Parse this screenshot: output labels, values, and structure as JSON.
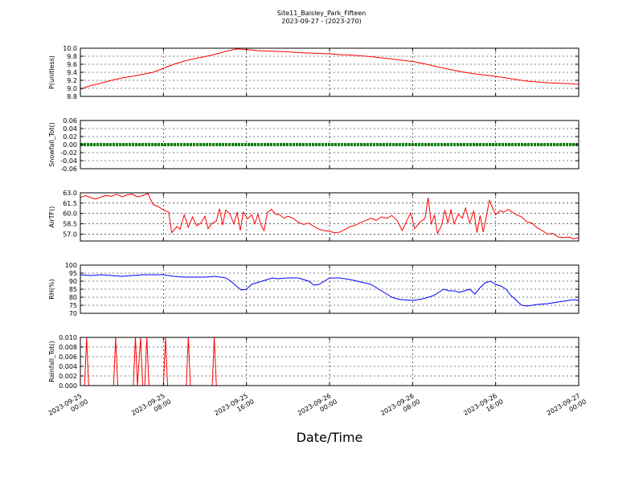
{
  "chart_data": {
    "type": "line",
    "title": "Site11_Baisley_Park_Fifteen",
    "subtitle": "2023-09-27 - (2023-270)",
    "xlabel": "Date/Time",
    "x_ticks": [
      {
        "line1": "2023-09-25",
        "line2": "00:00"
      },
      {
        "line1": "2023-09-25",
        "line2": "08:00"
      },
      {
        "line1": "2023-09-25",
        "line2": "16:00"
      },
      {
        "line1": "2023-09-26",
        "line2": "00:00"
      },
      {
        "line1": "2023-09-26",
        "line2": "08:00"
      },
      {
        "line1": "2023-09-26",
        "line2": "16:00"
      },
      {
        "line1": "2023-09-27",
        "line2": "00:00"
      }
    ],
    "x_range_hours": [
      0,
      48
    ],
    "grid": true,
    "panels": [
      {
        "ylabel": "P(unitless)",
        "ylim": [
          8.8,
          10.0
        ],
        "yticks": [
          "10.0",
          "9.8",
          "9.6",
          "9.4",
          "9.2",
          "9.0",
          "8.8"
        ],
        "ytick_values": [
          10.0,
          9.8,
          9.6,
          9.4,
          9.2,
          9.0,
          8.8
        ],
        "color": "#ff0000",
        "style": "line",
        "points": [
          [
            0,
            8.98
          ],
          [
            1,
            9.07
          ],
          [
            2,
            9.13
          ],
          [
            3,
            9.2
          ],
          [
            4,
            9.26
          ],
          [
            5,
            9.3
          ],
          [
            6,
            9.35
          ],
          [
            7,
            9.4
          ],
          [
            8,
            9.5
          ],
          [
            9,
            9.6
          ],
          [
            10,
            9.68
          ],
          [
            11,
            9.74
          ],
          [
            12,
            9.79
          ],
          [
            13,
            9.85
          ],
          [
            14,
            9.92
          ],
          [
            15,
            9.98
          ],
          [
            16,
            9.97
          ],
          [
            17,
            9.94
          ],
          [
            18,
            9.93
          ],
          [
            19,
            9.92
          ],
          [
            20,
            9.91
          ],
          [
            21,
            9.89
          ],
          [
            22,
            9.88
          ],
          [
            23,
            9.87
          ],
          [
            24,
            9.86
          ],
          [
            25,
            9.84
          ],
          [
            26,
            9.83
          ],
          [
            27,
            9.81
          ],
          [
            28,
            9.79
          ],
          [
            29,
            9.76
          ],
          [
            30,
            9.73
          ],
          [
            31,
            9.7
          ],
          [
            32,
            9.67
          ],
          [
            33,
            9.62
          ],
          [
            34,
            9.56
          ],
          [
            35,
            9.5
          ],
          [
            36,
            9.45
          ],
          [
            37,
            9.4
          ],
          [
            38,
            9.36
          ],
          [
            39,
            9.33
          ],
          [
            40,
            9.3
          ],
          [
            41,
            9.26
          ],
          [
            42,
            9.22
          ],
          [
            43,
            9.18
          ],
          [
            44,
            9.16
          ],
          [
            45,
            9.14
          ],
          [
            46,
            9.13
          ],
          [
            47,
            9.12
          ],
          [
            48,
            9.1
          ]
        ]
      },
      {
        "ylabel": "Snowfall_Tot()",
        "ylim": [
          -0.06,
          0.06
        ],
        "yticks": [
          "0.06",
          "0.04",
          "0.02",
          "0.00",
          "-0.02",
          "-0.04",
          "-0.06"
        ],
        "ytick_values": [
          0.06,
          0.04,
          0.02,
          0.0,
          -0.02,
          -0.04,
          -0.06
        ],
        "color": "#008000",
        "style": "dots",
        "points": [
          [
            0,
            0
          ],
          [
            48,
            0
          ]
        ]
      },
      {
        "ylabel": "AirTF()",
        "ylim": [
          56.0,
          63.0
        ],
        "yticks": [
          "63.0",
          "61.5",
          "60.0",
          "58.5",
          "57.0"
        ],
        "ytick_values": [
          63.0,
          61.5,
          60.0,
          58.5,
          57.0
        ],
        "color": "#ff0000",
        "style": "line",
        "points": [
          [
            0,
            62.3
          ],
          [
            0.5,
            62.6
          ],
          [
            1,
            62.3
          ],
          [
            1.5,
            62.1
          ],
          [
            2,
            62.4
          ],
          [
            2.5,
            62.6
          ],
          [
            3,
            62.5
          ],
          [
            3.5,
            62.8
          ],
          [
            4,
            62.4
          ],
          [
            4.5,
            62.7
          ],
          [
            5,
            62.8
          ],
          [
            5.5,
            62.4
          ],
          [
            6,
            62.6
          ],
          [
            6.5,
            62.9
          ],
          [
            7,
            61.3
          ],
          [
            7.5,
            61.0
          ],
          [
            8,
            60.5
          ],
          [
            8.5,
            60.2
          ],
          [
            8.8,
            57.2
          ],
          [
            9.3,
            58.1
          ],
          [
            9.6,
            57.7
          ],
          [
            10,
            59.8
          ],
          [
            10.4,
            58.0
          ],
          [
            10.8,
            59.5
          ],
          [
            11.2,
            58.2
          ],
          [
            11.6,
            58.6
          ],
          [
            12,
            59.6
          ],
          [
            12.3,
            57.8
          ],
          [
            12.7,
            58.6
          ],
          [
            13.1,
            58.9
          ],
          [
            13.4,
            60.7
          ],
          [
            13.7,
            58.3
          ],
          [
            14,
            60.5
          ],
          [
            14.4,
            59.9
          ],
          [
            14.8,
            58.5
          ],
          [
            15.1,
            60.2
          ],
          [
            15.4,
            57.5
          ],
          [
            15.7,
            60.2
          ],
          [
            16.1,
            59.2
          ],
          [
            16.5,
            59.8
          ],
          [
            16.8,
            58.5
          ],
          [
            17.1,
            59.9
          ],
          [
            17.4,
            58.3
          ],
          [
            17.7,
            57.5
          ],
          [
            18,
            60.1
          ],
          [
            18.4,
            60.6
          ],
          [
            18.8,
            59.9
          ],
          [
            19.2,
            59.8
          ],
          [
            19.6,
            59.3
          ],
          [
            20,
            59.6
          ],
          [
            20.5,
            59.3
          ],
          [
            21,
            58.7
          ],
          [
            21.5,
            58.4
          ],
          [
            22,
            58.6
          ],
          [
            22.5,
            58.1
          ],
          [
            23,
            57.7
          ],
          [
            23.5,
            57.5
          ],
          [
            24,
            57.4
          ],
          [
            24.5,
            57.2
          ],
          [
            25,
            57.3
          ],
          [
            25.5,
            57.7
          ],
          [
            26,
            58.1
          ],
          [
            26.5,
            58.3
          ],
          [
            27,
            58.7
          ],
          [
            27.5,
            59.0
          ],
          [
            28,
            59.3
          ],
          [
            28.5,
            59.0
          ],
          [
            29,
            59.5
          ],
          [
            29.5,
            59.3
          ],
          [
            30,
            59.7
          ],
          [
            30.5,
            59.0
          ],
          [
            31,
            57.5
          ],
          [
            31.4,
            58.8
          ],
          [
            31.8,
            60.1
          ],
          [
            32.2,
            57.8
          ],
          [
            32.7,
            58.7
          ],
          [
            33.2,
            59.3
          ],
          [
            33.5,
            62.3
          ],
          [
            33.8,
            58.4
          ],
          [
            34.1,
            59.8
          ],
          [
            34.4,
            57.1
          ],
          [
            34.8,
            58.3
          ],
          [
            35.1,
            60.5
          ],
          [
            35.4,
            58.6
          ],
          [
            35.7,
            60.6
          ],
          [
            36,
            58.5
          ],
          [
            36.4,
            59.9
          ],
          [
            36.8,
            59.3
          ],
          [
            37.1,
            60.8
          ],
          [
            37.5,
            58.6
          ],
          [
            37.9,
            60.4
          ],
          [
            38.2,
            57.2
          ],
          [
            38.5,
            59.7
          ],
          [
            38.8,
            57.3
          ],
          [
            39.1,
            59.5
          ],
          [
            39.4,
            61.9
          ],
          [
            39.7,
            60.8
          ],
          [
            40,
            59.8
          ],
          [
            40.4,
            60.4
          ],
          [
            40.8,
            60.2
          ],
          [
            41.2,
            60.6
          ],
          [
            41.6,
            60.2
          ],
          [
            42,
            59.8
          ],
          [
            42.5,
            59.5
          ],
          [
            43,
            58.8
          ],
          [
            43.5,
            58.6
          ],
          [
            44,
            57.9
          ],
          [
            44.5,
            57.5
          ],
          [
            45,
            57.0
          ],
          [
            45.5,
            57.1
          ],
          [
            46,
            56.6
          ],
          [
            46.5,
            56.5
          ],
          [
            47,
            56.6
          ],
          [
            47.5,
            56.3
          ],
          [
            48,
            56.5
          ]
        ]
      },
      {
        "ylabel": "RH(%)",
        "ylim": [
          70,
          100
        ],
        "yticks": [
          "100",
          "95",
          "90",
          "85",
          "80",
          "75",
          "70"
        ],
        "ytick_values": [
          100,
          95,
          90,
          85,
          80,
          75,
          70
        ],
        "color": "#0000ff",
        "style": "line",
        "points": [
          [
            0,
            94
          ],
          [
            1,
            93.5
          ],
          [
            2,
            94
          ],
          [
            3,
            93.5
          ],
          [
            4,
            93
          ],
          [
            5,
            93.5
          ],
          [
            6,
            94
          ],
          [
            7,
            94
          ],
          [
            8,
            94
          ],
          [
            9,
            93
          ],
          [
            10,
            92.5
          ],
          [
            11,
            92.5
          ],
          [
            12,
            92.5
          ],
          [
            13,
            93
          ],
          [
            14,
            92
          ],
          [
            14.5,
            90
          ],
          [
            15,
            87
          ],
          [
            15.5,
            84.5
          ],
          [
            16,
            85
          ],
          [
            16.5,
            88
          ],
          [
            17,
            89
          ],
          [
            17.5,
            90
          ],
          [
            18,
            91
          ],
          [
            18.5,
            92
          ],
          [
            19,
            91.5
          ],
          [
            20,
            92
          ],
          [
            21,
            92
          ],
          [
            22,
            90
          ],
          [
            22.5,
            87.5
          ],
          [
            23,
            88
          ],
          [
            23.5,
            90
          ],
          [
            24,
            92
          ],
          [
            25,
            92
          ],
          [
            26,
            91
          ],
          [
            27,
            89.5
          ],
          [
            28,
            88
          ],
          [
            28.5,
            86
          ],
          [
            29,
            84
          ],
          [
            29.5,
            82
          ],
          [
            30,
            80
          ],
          [
            30.5,
            79
          ],
          [
            31,
            78.5
          ],
          [
            32,
            78
          ],
          [
            33,
            79
          ],
          [
            34,
            81
          ],
          [
            34.5,
            83
          ],
          [
            35,
            85
          ],
          [
            35.5,
            84
          ],
          [
            36,
            84
          ],
          [
            36.5,
            83
          ],
          [
            37,
            84
          ],
          [
            37.5,
            85
          ],
          [
            38,
            82
          ],
          [
            38.5,
            86
          ],
          [
            39,
            89
          ],
          [
            39.5,
            90
          ],
          [
            40,
            88
          ],
          [
            40.5,
            87
          ],
          [
            41,
            85
          ],
          [
            41.5,
            81
          ],
          [
            42,
            78
          ],
          [
            42.5,
            75
          ],
          [
            43,
            74.5
          ],
          [
            43.5,
            75
          ],
          [
            44,
            75.5
          ],
          [
            45,
            76
          ],
          [
            45.5,
            76.5
          ],
          [
            46,
            77
          ],
          [
            46.5,
            77.5
          ],
          [
            47,
            78
          ],
          [
            47.5,
            78.5
          ],
          [
            48,
            78
          ]
        ]
      },
      {
        "ylabel": "Rainfall_Tot()",
        "ylim": [
          0.0,
          0.01
        ],
        "yticks": [
          "0.010",
          "0.008",
          "0.006",
          "0.004",
          "0.002",
          "0.000"
        ],
        "ytick_values": [
          0.01,
          0.008,
          0.006,
          0.004,
          0.002,
          0.0
        ],
        "color": "#ff0000",
        "style": "line",
        "points": [
          [
            0,
            0
          ],
          [
            0.4,
            0
          ],
          [
            0.6,
            0.01
          ],
          [
            0.8,
            0
          ],
          [
            3.2,
            0
          ],
          [
            3.4,
            0.01
          ],
          [
            3.6,
            0
          ],
          [
            5.1,
            0
          ],
          [
            5.3,
            0.01
          ],
          [
            5.5,
            0
          ],
          [
            5.8,
            0.01
          ],
          [
            6.0,
            0
          ],
          [
            6.2,
            0
          ],
          [
            6.4,
            0.01
          ],
          [
            6.6,
            0
          ],
          [
            8.0,
            0
          ],
          [
            8.2,
            0.01
          ],
          [
            8.4,
            0
          ],
          [
            10.2,
            0
          ],
          [
            10.4,
            0.01
          ],
          [
            10.6,
            0
          ],
          [
            12.7,
            0
          ],
          [
            12.9,
            0.01
          ],
          [
            13.1,
            0
          ],
          [
            48,
            0
          ]
        ]
      }
    ]
  }
}
